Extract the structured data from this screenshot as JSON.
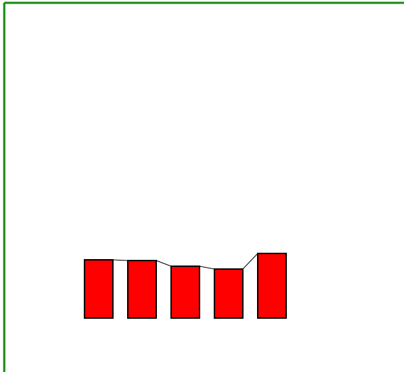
{
  "chart_data": {
    "type": "bar",
    "values": [
      82,
      81,
      73,
      69,
      91
    ],
    "color": "#ff0000"
  }
}
